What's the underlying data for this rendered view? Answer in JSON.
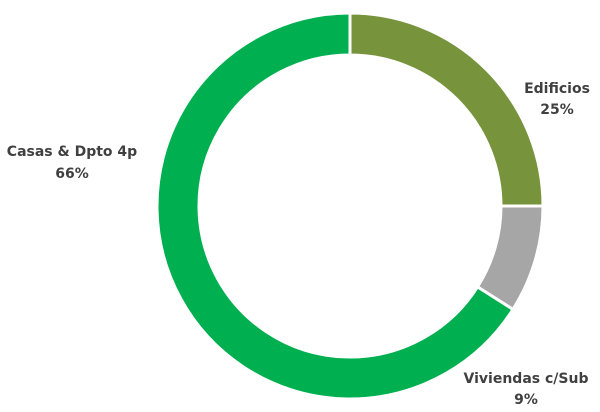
{
  "chart_data": {
    "type": "pie",
    "variant": "donut",
    "start_angle_deg": 0,
    "direction": "clockwise",
    "slices": [
      {
        "label": "Edificios",
        "percent_label": "25%",
        "value": 25,
        "color": "#77933c"
      },
      {
        "label": "Viviendas c/Sub",
        "percent_label": "9%",
        "value": 9,
        "color": "#a6a6a6"
      },
      {
        "label": "Casas & Dpto 4p",
        "percent_label": "66%",
        "value": 66,
        "color": "#00b050"
      }
    ],
    "separator_color": "#ffffff",
    "legend": "none"
  }
}
